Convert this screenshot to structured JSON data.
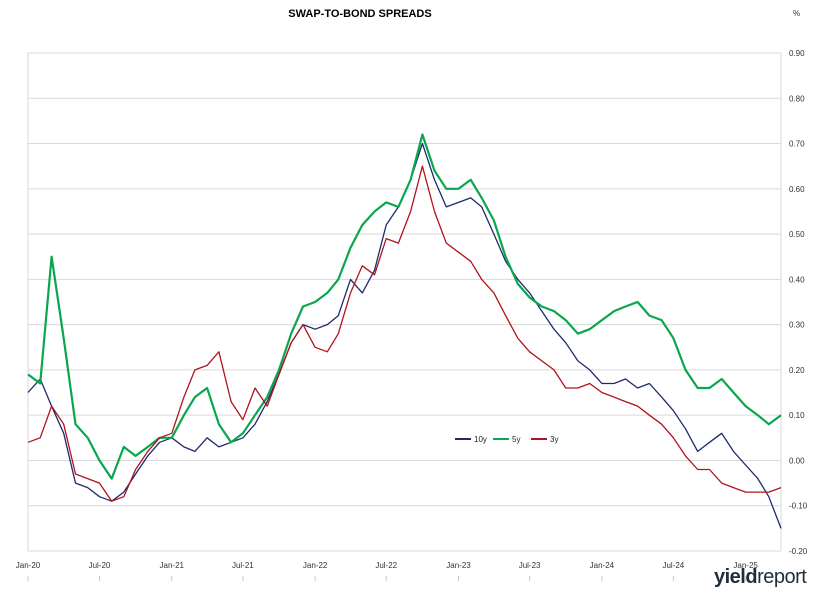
{
  "chart_data": {
    "type": "line",
    "title": "SWAP-TO-BOND SPREADS",
    "unit": "%",
    "xlabel": "",
    "ylabel": "",
    "ylim": [
      -0.2,
      0.9
    ],
    "y_ticks": [
      "0.90",
      "0.80",
      "0.70",
      "0.60",
      "0.50",
      "0.40",
      "0.30",
      "0.20",
      "0.10",
      "0.00",
      "-0.10",
      "-0.20"
    ],
    "x_ticks": [
      "Jan-20",
      "Jul-20",
      "Jan-21",
      "Jul-21",
      "Jan-22",
      "Jul-22",
      "Jan-23",
      "Jul-23",
      "Jan-24",
      "Jul-24",
      "Jan-25"
    ],
    "grid": "horizontal",
    "legend": "center-right",
    "series": [
      {
        "name": "10y",
        "color": "#1f2a6e",
        "x": [
          "2020-01",
          "2020-02",
          "2020-03",
          "2020-04",
          "2020-05",
          "2020-06",
          "2020-07",
          "2020-08",
          "2020-09",
          "2020-10",
          "2020-11",
          "2020-12",
          "2021-01",
          "2021-02",
          "2021-03",
          "2021-04",
          "2021-05",
          "2021-06",
          "2021-07",
          "2021-08",
          "2021-09",
          "2021-10",
          "2021-11",
          "2021-12",
          "2022-01",
          "2022-02",
          "2022-03",
          "2022-04",
          "2022-05",
          "2022-06",
          "2022-07",
          "2022-08",
          "2022-09",
          "2022-10",
          "2022-11",
          "2022-12",
          "2023-01",
          "2023-02",
          "2023-03",
          "2023-04",
          "2023-05",
          "2023-06",
          "2023-07",
          "2023-08",
          "2023-09",
          "2023-10",
          "2023-11",
          "2023-12",
          "2024-01",
          "2024-02",
          "2024-03",
          "2024-04",
          "2024-05",
          "2024-06",
          "2024-07",
          "2024-08",
          "2024-09",
          "2024-10",
          "2024-11",
          "2024-12",
          "2025-01",
          "2025-02",
          "2025-03",
          "2025-04"
        ],
        "values": [
          0.15,
          0.18,
          0.12,
          0.06,
          -0.05,
          -0.06,
          -0.08,
          -0.09,
          -0.07,
          -0.03,
          0.01,
          0.04,
          0.05,
          0.03,
          0.02,
          0.05,
          0.03,
          0.04,
          0.05,
          0.08,
          0.13,
          0.19,
          0.26,
          0.3,
          0.29,
          0.3,
          0.32,
          0.4,
          0.37,
          0.42,
          0.52,
          0.56,
          0.62,
          0.7,
          0.62,
          0.56,
          0.57,
          0.58,
          0.56,
          0.5,
          0.44,
          0.4,
          0.37,
          0.33,
          0.29,
          0.26,
          0.22,
          0.2,
          0.17,
          0.17,
          0.18,
          0.16,
          0.17,
          0.14,
          0.11,
          0.07,
          0.02,
          0.04,
          0.06,
          0.02,
          -0.01,
          -0.04,
          -0.08,
          -0.15
        ]
      },
      {
        "name": "5y",
        "color": "#0aa64e",
        "x": [
          "2020-01",
          "2020-02",
          "2020-03",
          "2020-04",
          "2020-05",
          "2020-06",
          "2020-07",
          "2020-08",
          "2020-09",
          "2020-10",
          "2020-11",
          "2020-12",
          "2021-01",
          "2021-02",
          "2021-03",
          "2021-04",
          "2021-05",
          "2021-06",
          "2021-07",
          "2021-08",
          "2021-09",
          "2021-10",
          "2021-11",
          "2021-12",
          "2022-01",
          "2022-02",
          "2022-03",
          "2022-04",
          "2022-05",
          "2022-06",
          "2022-07",
          "2022-08",
          "2022-09",
          "2022-10",
          "2022-11",
          "2022-12",
          "2023-01",
          "2023-02",
          "2023-03",
          "2023-04",
          "2023-05",
          "2023-06",
          "2023-07",
          "2023-08",
          "2023-09",
          "2023-10",
          "2023-11",
          "2023-12",
          "2024-01",
          "2024-02",
          "2024-03",
          "2024-04",
          "2024-05",
          "2024-06",
          "2024-07",
          "2024-08",
          "2024-09",
          "2024-10",
          "2024-11",
          "2024-12",
          "2025-01",
          "2025-02",
          "2025-03",
          "2025-04"
        ],
        "values": [
          0.19,
          0.17,
          0.45,
          0.27,
          0.08,
          0.05,
          0.0,
          -0.04,
          0.03,
          0.01,
          0.03,
          0.05,
          0.05,
          0.1,
          0.14,
          0.16,
          0.08,
          0.04,
          0.06,
          0.1,
          0.14,
          0.2,
          0.28,
          0.34,
          0.35,
          0.37,
          0.4,
          0.47,
          0.52,
          0.55,
          0.57,
          0.56,
          0.62,
          0.72,
          0.64,
          0.6,
          0.6,
          0.62,
          0.58,
          0.53,
          0.45,
          0.39,
          0.36,
          0.34,
          0.33,
          0.31,
          0.28,
          0.29,
          0.31,
          0.33,
          0.34,
          0.35,
          0.32,
          0.31,
          0.27,
          0.2,
          0.16,
          0.16,
          0.18,
          0.15,
          0.12,
          0.1,
          0.08,
          0.1
        ]
      },
      {
        "name": "3y",
        "color": "#b0141c",
        "x": [
          "2020-01",
          "2020-02",
          "2020-03",
          "2020-04",
          "2020-05",
          "2020-06",
          "2020-07",
          "2020-08",
          "2020-09",
          "2020-10",
          "2020-11",
          "2020-12",
          "2021-01",
          "2021-02",
          "2021-03",
          "2021-04",
          "2021-05",
          "2021-06",
          "2021-07",
          "2021-08",
          "2021-09",
          "2021-10",
          "2021-11",
          "2021-12",
          "2022-01",
          "2022-02",
          "2022-03",
          "2022-04",
          "2022-05",
          "2022-06",
          "2022-07",
          "2022-08",
          "2022-09",
          "2022-10",
          "2022-11",
          "2022-12",
          "2023-01",
          "2023-02",
          "2023-03",
          "2023-04",
          "2023-05",
          "2023-06",
          "2023-07",
          "2023-08",
          "2023-09",
          "2023-10",
          "2023-11",
          "2023-12",
          "2024-01",
          "2024-02",
          "2024-03",
          "2024-04",
          "2024-05",
          "2024-06",
          "2024-07",
          "2024-08",
          "2024-09",
          "2024-10",
          "2024-11",
          "2024-12",
          "2025-01",
          "2025-02",
          "2025-03",
          "2025-04"
        ],
        "values": [
          0.04,
          0.05,
          0.12,
          0.08,
          -0.03,
          -0.04,
          -0.05,
          -0.09,
          -0.08,
          -0.02,
          0.02,
          0.05,
          0.06,
          0.14,
          0.2,
          0.21,
          0.24,
          0.13,
          0.09,
          0.16,
          0.12,
          0.19,
          0.26,
          0.3,
          0.25,
          0.24,
          0.28,
          0.37,
          0.43,
          0.41,
          0.49,
          0.48,
          0.55,
          0.65,
          0.55,
          0.48,
          0.46,
          0.44,
          0.4,
          0.37,
          0.32,
          0.27,
          0.24,
          0.22,
          0.2,
          0.16,
          0.16,
          0.17,
          0.15,
          0.14,
          0.13,
          0.12,
          0.1,
          0.08,
          0.05,
          0.01,
          -0.02,
          -0.02,
          -0.05,
          -0.06,
          -0.07,
          -0.07,
          -0.07,
          -0.06
        ]
      }
    ]
  },
  "brand": {
    "part1": "yield",
    "part2": "report"
  }
}
